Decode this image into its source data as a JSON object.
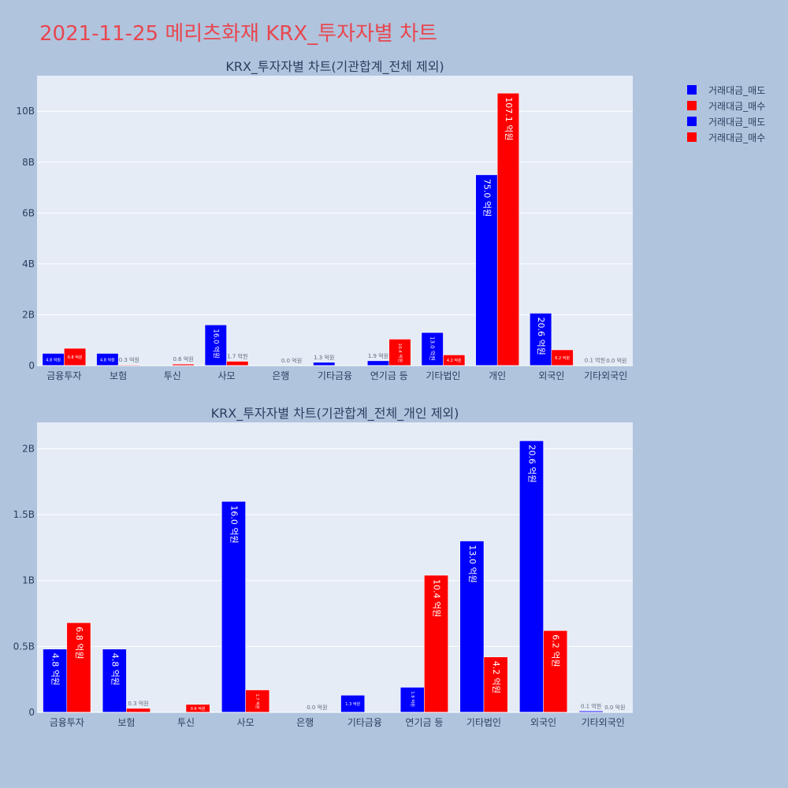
{
  "page": {
    "title": "2021-11-25 메리츠화재 KRX_투자자별 차트"
  },
  "colors": {
    "sell": "#0000ff",
    "buy": "#ff0000",
    "plot_bg": "#e5ecf6",
    "page_bg": "#b0c4de",
    "title": "#e8474f"
  },
  "legend": {
    "items": [
      {
        "label": "거래대금_매도",
        "color": "#0000ff"
      },
      {
        "label": "거래대금_매수",
        "color": "#ff0000"
      },
      {
        "label": "거래대금_매도",
        "color": "#0000ff"
      },
      {
        "label": "거래대금_매수",
        "color": "#ff0000"
      }
    ]
  },
  "chart_data": [
    {
      "type": "bar",
      "title": "KRX_투자자별 차트(기관합계_전체 제외)",
      "categories": [
        "금융투자",
        "보험",
        "투신",
        "사모",
        "은행",
        "기타금융",
        "연기금 등",
        "기타법인",
        "개인",
        "외국인",
        "기타외국인"
      ],
      "ylim": [
        0,
        11400000000
      ],
      "yticks": [
        0,
        2000000000,
        4000000000,
        6000000000,
        8000000000,
        10000000000
      ],
      "ytick_labels": [
        "0",
        "2B",
        "4B",
        "6B",
        "8B",
        "10B"
      ],
      "grid": true,
      "series": [
        {
          "name": "거래대금_매도",
          "color": "#0000ff",
          "values": [
            480000000,
            480000000,
            0,
            1600000000,
            0,
            130000000,
            190000000,
            1300000000,
            7500000000,
            2060000000,
            10000000
          ],
          "labels": [
            "4.8 억원",
            "4.8 억원",
            "",
            "16.0 억원",
            "",
            "1.3 억원",
            "1.9 억원",
            "13.0 억원",
            "75.0 억원",
            "20.6 억원",
            "0.1 억원"
          ]
        },
        {
          "name": "거래대금_매수",
          "color": "#ff0000",
          "values": [
            680000000,
            30000000,
            60000000,
            170000000,
            0,
            0,
            1040000000,
            420000000,
            10710000000,
            620000000,
            0
          ],
          "labels": [
            "6.8 억원",
            "0.3 억원",
            "0.6 억원",
            "1.7 억원",
            "0.0 억원",
            "",
            "10.4 억원",
            "4.2 억원",
            "107.1 억원",
            "6.2 억원",
            "0.0 억원"
          ]
        }
      ]
    },
    {
      "type": "bar",
      "title": "KRX_투자자별 차트(기관합계_전체_개인 제외)",
      "categories": [
        "금융투자",
        "보험",
        "투신",
        "사모",
        "은행",
        "기타금융",
        "연기금 등",
        "기타법인",
        "외국인",
        "기타외국인"
      ],
      "ylim": [
        0,
        2200000000
      ],
      "yticks": [
        0,
        500000000,
        1000000000,
        1500000000,
        2000000000
      ],
      "ytick_labels": [
        "0",
        "0.5B",
        "1B",
        "1.5B",
        "2B"
      ],
      "grid": true,
      "series": [
        {
          "name": "거래대금_매도",
          "color": "#0000ff",
          "values": [
            480000000,
            480000000,
            0,
            1600000000,
            0,
            130000000,
            190000000,
            1300000000,
            2060000000,
            10000000
          ],
          "labels": [
            "4.8 억원",
            "4.8 억원",
            "",
            "16.0 억원",
            "",
            "1.3 억원",
            "1.9 억원",
            "13.0 억원",
            "20.6 억원",
            "0.1 억원"
          ]
        },
        {
          "name": "거래대금_매수",
          "color": "#ff0000",
          "values": [
            680000000,
            30000000,
            60000000,
            170000000,
            0,
            0,
            1040000000,
            420000000,
            620000000,
            0
          ],
          "labels": [
            "6.8 억원",
            "0.3 억원",
            "0.6 억원",
            "1.7 억원",
            "0.0 억원",
            "",
            "10.4 억원",
            "4.2 억원",
            "6.2 억원",
            "0.0 억원"
          ]
        }
      ]
    }
  ]
}
